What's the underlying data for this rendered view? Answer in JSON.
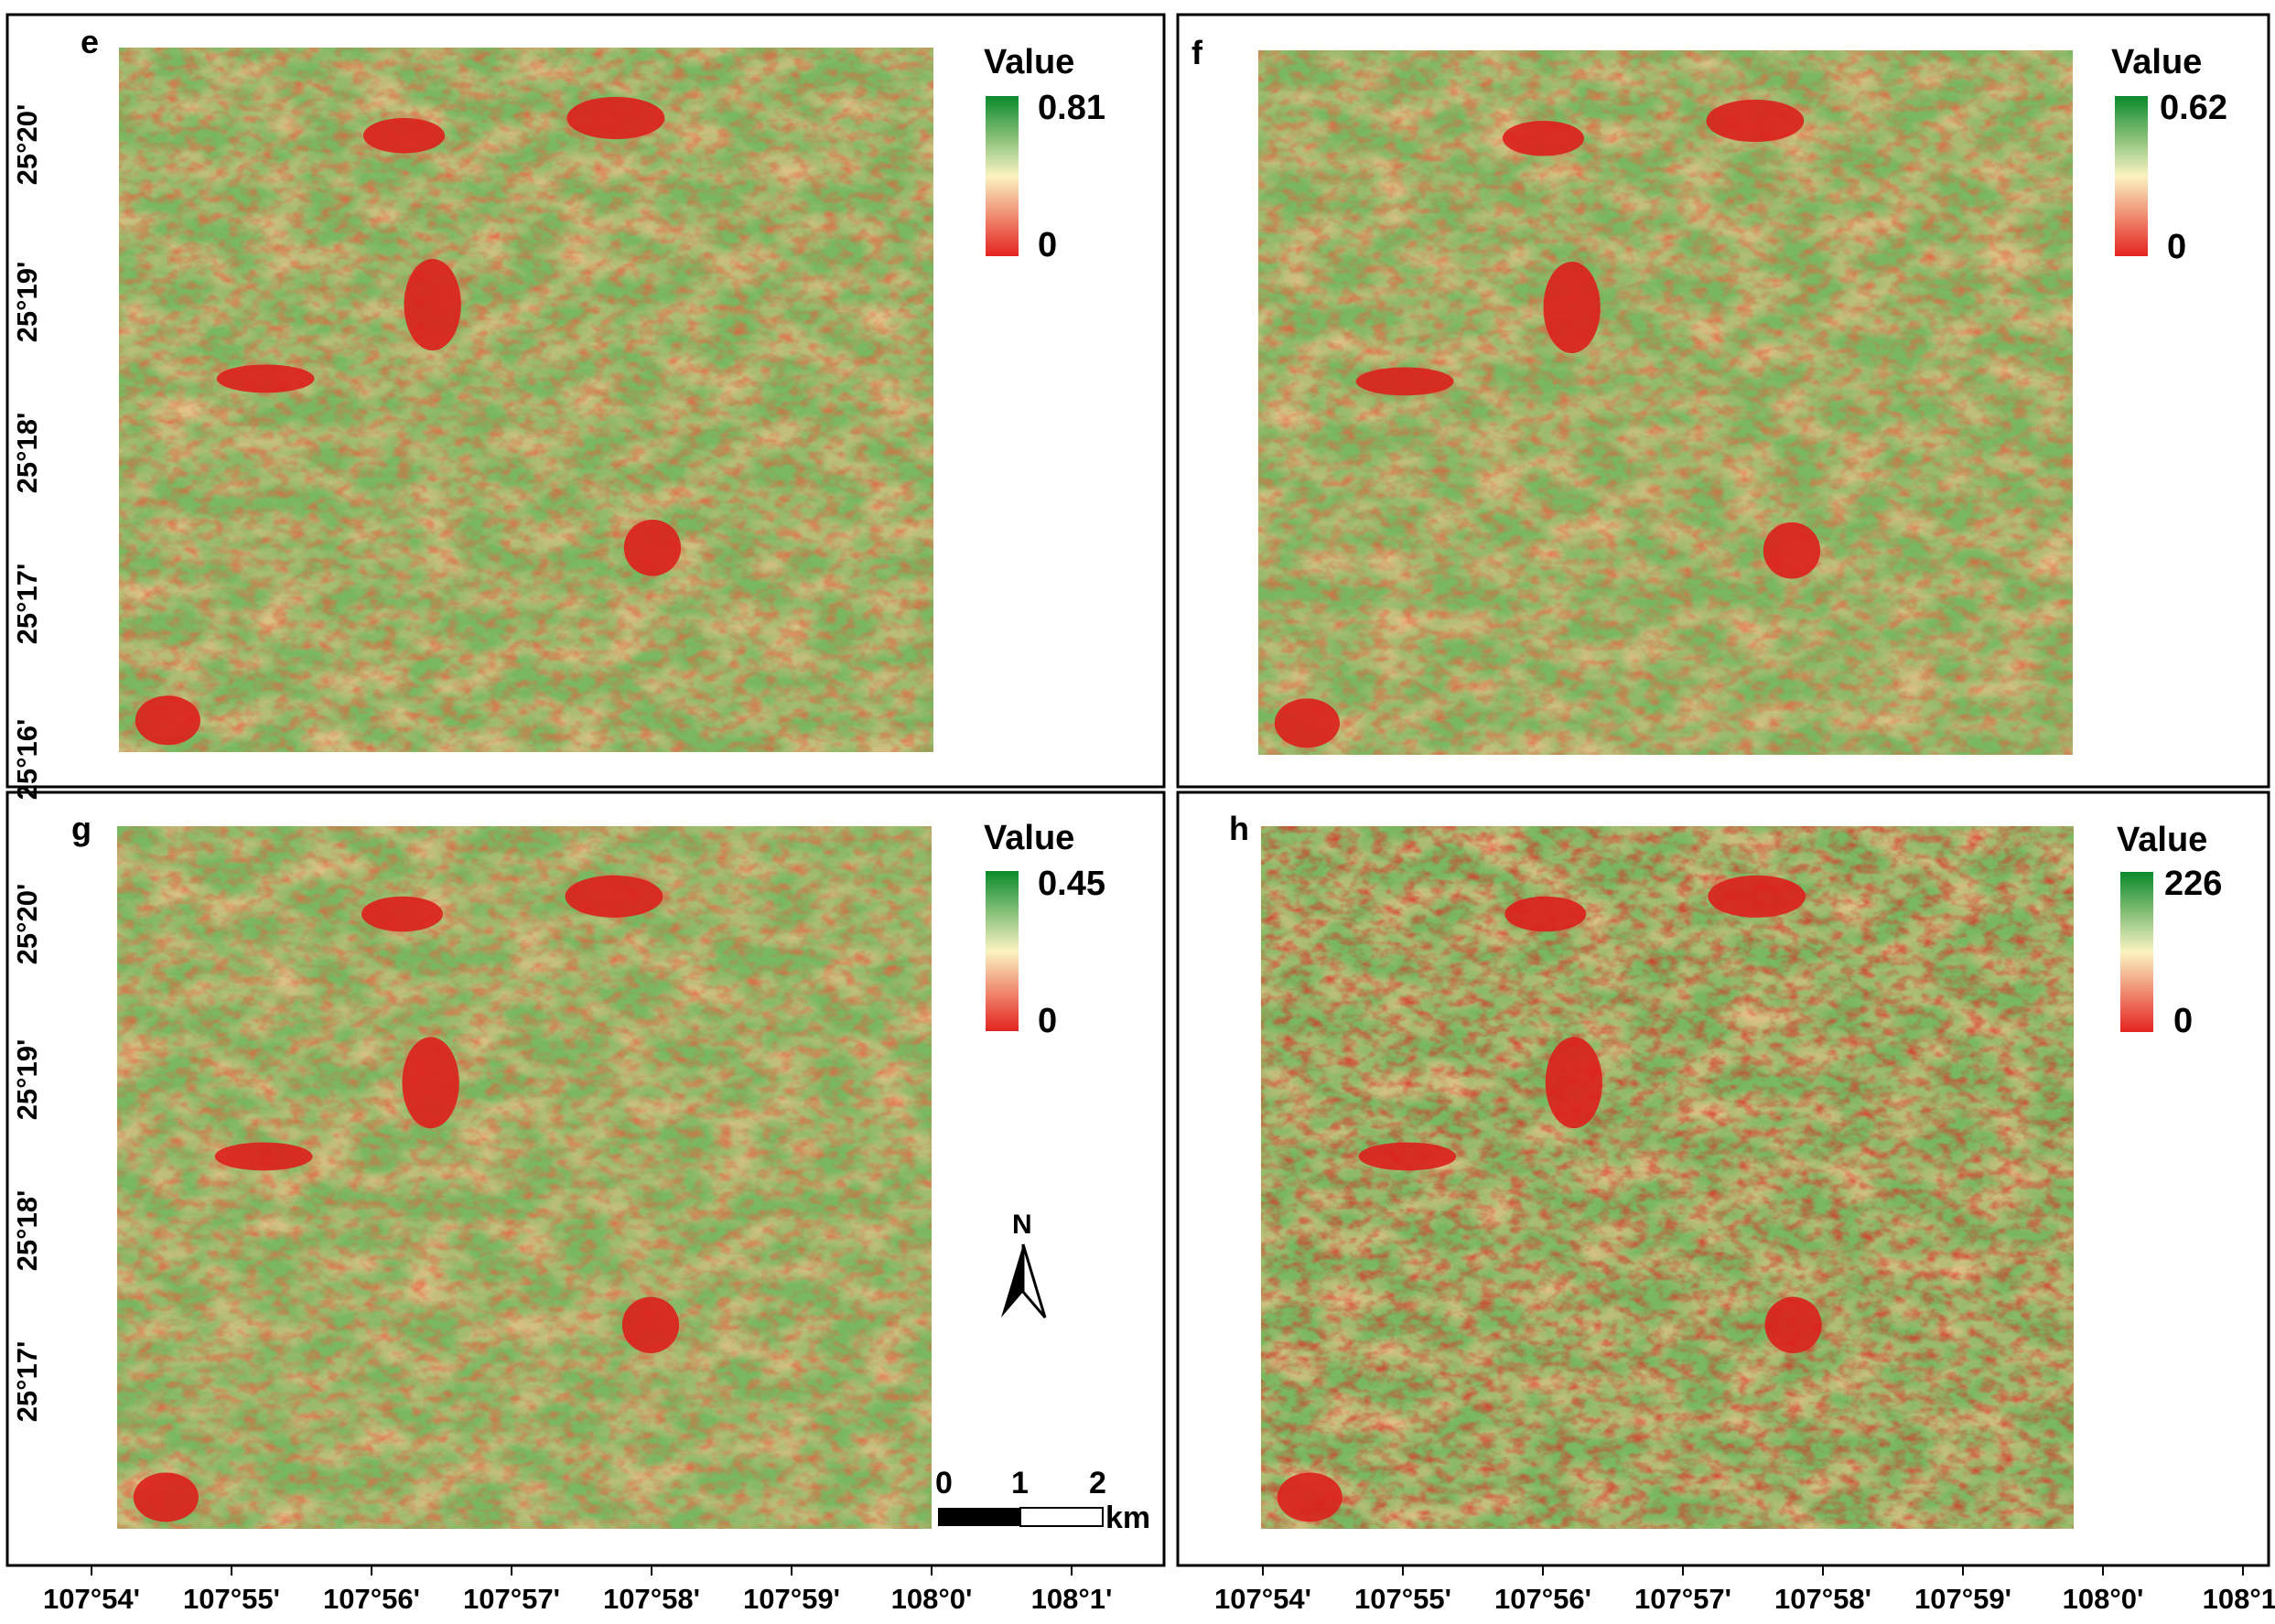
{
  "colors": {
    "high": "#0a8a2a",
    "mid": "#fbf3c1",
    "low": "#e4231f"
  },
  "panels": [
    {
      "id": "e",
      "label": "e",
      "legend_title": "Value",
      "legend_max": "0.81",
      "legend_min": "0"
    },
    {
      "id": "f",
      "label": "f",
      "legend_title": "Value",
      "legend_max": "0.62",
      "legend_min": "0"
    },
    {
      "id": "g",
      "label": "g",
      "legend_title": "Value",
      "legend_max": "0.45",
      "legend_min": "0"
    },
    {
      "id": "h",
      "label": "h",
      "legend_title": "Value",
      "legend_max": "226",
      "legend_min": "0"
    }
  ],
  "axes": {
    "lat_top": [
      "25°20'",
      "25°19'",
      "25°18'",
      "25°17'",
      "25°16'"
    ],
    "lat_bottom": [
      "25°20'",
      "25°19'",
      "25°18'",
      "25°17'"
    ],
    "lon": [
      "107°54'",
      "107°55'",
      "107°56'",
      "107°57'",
      "107°58'",
      "107°59'",
      "108°0'",
      "108°1'"
    ]
  },
  "scale_bar": {
    "labels": [
      "0",
      "1",
      "2"
    ],
    "unit": "km"
  },
  "north_arrow": {
    "label": "N"
  }
}
